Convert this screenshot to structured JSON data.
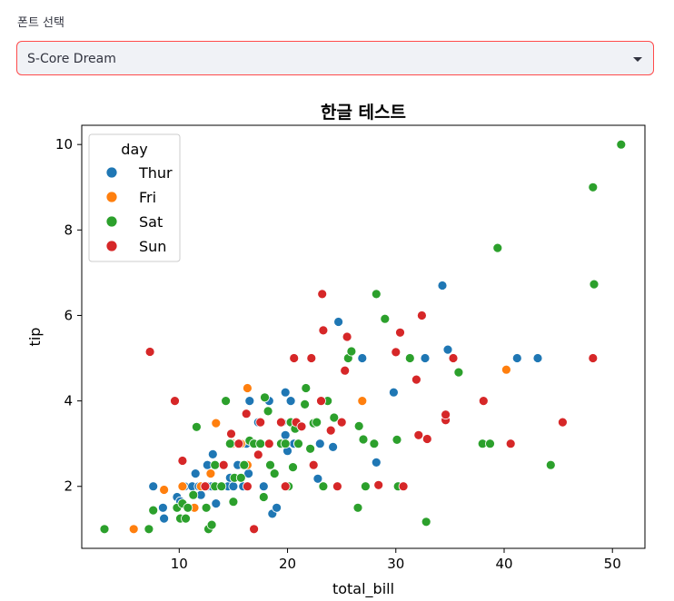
{
  "font_select": {
    "label": "폰트 선택",
    "value": "S-Core Dream",
    "border_color": "#ff4b4b",
    "background": "#f0f2f6",
    "icon": "chevron-down-icon"
  },
  "chart_data": {
    "type": "scatter",
    "title": "한글 테스트",
    "xlabel": "total_bill",
    "ylabel": "tip",
    "xlim": [
      1.0,
      53.0
    ],
    "ylim": [
      0.55,
      10.45
    ],
    "xticks": [
      10,
      20,
      30,
      40,
      50
    ],
    "yticks": [
      2,
      4,
      6,
      8,
      10
    ],
    "grid": false,
    "legend": {
      "title": "day",
      "position": "top-left"
    },
    "series": [
      {
        "name": "Thur",
        "color": "#1f77b4",
        "points": [
          [
            7.6,
            2.0
          ],
          [
            8.5,
            1.5
          ],
          [
            8.6,
            1.25
          ],
          [
            9.8,
            1.75
          ],
          [
            10.1,
            1.65
          ],
          [
            10.5,
            2.0
          ],
          [
            11.2,
            2.0
          ],
          [
            11.5,
            2.3
          ],
          [
            11.8,
            2.0
          ],
          [
            12.0,
            1.8
          ],
          [
            12.4,
            2.0
          ],
          [
            12.7,
            2.0
          ],
          [
            13.0,
            2.0
          ],
          [
            13.1,
            2.75
          ],
          [
            13.4,
            1.6
          ],
          [
            13.8,
            2.0
          ],
          [
            14.5,
            2.0
          ],
          [
            14.7,
            2.2
          ],
          [
            15.0,
            3.0
          ],
          [
            15.4,
            2.5
          ],
          [
            15.9,
            2.0
          ],
          [
            16.4,
            2.3
          ],
          [
            16.5,
            4.0
          ],
          [
            17.0,
            3.0
          ],
          [
            17.3,
            3.5
          ],
          [
            17.8,
            2.0
          ],
          [
            18.3,
            4.0
          ],
          [
            18.6,
            1.36
          ],
          [
            19.0,
            1.5
          ],
          [
            19.5,
            3.5
          ],
          [
            19.8,
            4.2
          ],
          [
            20.0,
            2.83
          ],
          [
            20.3,
            4.0
          ],
          [
            20.6,
            3.0
          ],
          [
            21.0,
            3.0
          ],
          [
            22.8,
            2.18
          ],
          [
            23.0,
            3.0
          ],
          [
            24.2,
            2.92
          ],
          [
            24.7,
            5.85
          ],
          [
            26.9,
            5.0
          ],
          [
            28.2,
            2.56
          ],
          [
            29.8,
            4.2
          ],
          [
            32.7,
            5.0
          ],
          [
            34.3,
            6.7
          ],
          [
            34.8,
            5.2
          ],
          [
            41.2,
            5.0
          ],
          [
            43.1,
            5.0
          ],
          [
            16.2,
            3.0
          ],
          [
            15.0,
            2.0
          ],
          [
            19.8,
            3.2
          ],
          [
            13.4,
            2.0
          ],
          [
            12.6,
            2.5
          ]
        ]
      },
      {
        "name": "Fri",
        "color": "#ff7f0e",
        "points": [
          [
            5.8,
            1.0
          ],
          [
            8.6,
            1.92
          ],
          [
            10.3,
            2.0
          ],
          [
            11.4,
            1.5
          ],
          [
            12.0,
            2.0
          ],
          [
            12.5,
            1.5
          ],
          [
            13.4,
            3.48
          ],
          [
            13.4,
            2.0
          ],
          [
            15.0,
            3.0
          ],
          [
            15.4,
            3.0
          ],
          [
            15.7,
            3.0
          ],
          [
            16.3,
            4.3
          ],
          [
            16.3,
            2.5
          ],
          [
            21.0,
            3.0
          ],
          [
            22.5,
            3.5
          ],
          [
            26.9,
            4.0
          ],
          [
            28.0,
            3.0
          ],
          [
            40.2,
            4.73
          ],
          [
            12.9,
            2.3
          ]
        ]
      },
      {
        "name": "Sat",
        "color": "#2ca02c",
        "points": [
          [
            3.1,
            1.0
          ],
          [
            7.2,
            1.0
          ],
          [
            7.6,
            1.44
          ],
          [
            9.8,
            1.5
          ],
          [
            10.1,
            1.25
          ],
          [
            10.3,
            1.6
          ],
          [
            10.6,
            1.25
          ],
          [
            10.8,
            1.5
          ],
          [
            11.3,
            1.8
          ],
          [
            11.6,
            3.39
          ],
          [
            12.5,
            1.5
          ],
          [
            12.7,
            1.0
          ],
          [
            13.0,
            1.1
          ],
          [
            13.3,
            2.5
          ],
          [
            13.3,
            2.0
          ],
          [
            13.9,
            2.0
          ],
          [
            14.3,
            4.0
          ],
          [
            14.7,
            3.0
          ],
          [
            15.0,
            1.64
          ],
          [
            15.1,
            2.2
          ],
          [
            15.7,
            2.2
          ],
          [
            16.0,
            2.5
          ],
          [
            16.5,
            3.07
          ],
          [
            16.9,
            3.0
          ],
          [
            17.5,
            3.0
          ],
          [
            17.8,
            1.75
          ],
          [
            17.9,
            4.08
          ],
          [
            18.2,
            3.76
          ],
          [
            18.4,
            2.5
          ],
          [
            18.8,
            2.3
          ],
          [
            19.4,
            3.0
          ],
          [
            19.8,
            3.0
          ],
          [
            20.1,
            2.0
          ],
          [
            20.3,
            3.5
          ],
          [
            20.5,
            2.45
          ],
          [
            20.7,
            3.35
          ],
          [
            21.0,
            3.0
          ],
          [
            21.6,
            3.92
          ],
          [
            21.7,
            4.3
          ],
          [
            22.1,
            2.88
          ],
          [
            22.4,
            3.48
          ],
          [
            23.3,
            2.0
          ],
          [
            23.7,
            4.0
          ],
          [
            24.3,
            3.61
          ],
          [
            24.6,
            2.0
          ],
          [
            25.3,
            4.71
          ],
          [
            25.6,
            5.0
          ],
          [
            25.9,
            5.16
          ],
          [
            26.5,
            1.5
          ],
          [
            26.6,
            3.41
          ],
          [
            27.0,
            3.1
          ],
          [
            27.2,
            2.0
          ],
          [
            28.0,
            3.0
          ],
          [
            28.2,
            6.5
          ],
          [
            29.0,
            5.92
          ],
          [
            30.1,
            3.09
          ],
          [
            30.2,
            2.0
          ],
          [
            31.3,
            5.0
          ],
          [
            32.8,
            1.17
          ],
          [
            35.8,
            4.67
          ],
          [
            38.0,
            3.0
          ],
          [
            38.7,
            3.0
          ],
          [
            39.4,
            7.58
          ],
          [
            44.3,
            2.5
          ],
          [
            48.2,
            9.0
          ],
          [
            48.3,
            6.73
          ],
          [
            50.8,
            10.0
          ],
          [
            22.7,
            3.5
          ]
        ]
      },
      {
        "name": "Sun",
        "color": "#d62728",
        "points": [
          [
            7.3,
            5.15
          ],
          [
            9.6,
            4.0
          ],
          [
            10.3,
            2.6
          ],
          [
            12.4,
            2.0
          ],
          [
            14.1,
            2.5
          ],
          [
            14.8,
            3.23
          ],
          [
            15.5,
            3.0
          ],
          [
            16.2,
            3.7
          ],
          [
            16.3,
            2.0
          ],
          [
            16.9,
            1.0
          ],
          [
            17.3,
            2.74
          ],
          [
            17.5,
            3.5
          ],
          [
            18.3,
            3.0
          ],
          [
            19.4,
            3.5
          ],
          [
            19.8,
            2.0
          ],
          [
            20.6,
            5.0
          ],
          [
            20.8,
            3.5
          ],
          [
            21.3,
            3.4
          ],
          [
            22.2,
            5.0
          ],
          [
            22.4,
            2.5
          ],
          [
            23.1,
            4.0
          ],
          [
            23.2,
            6.5
          ],
          [
            23.3,
            5.65
          ],
          [
            24.0,
            3.31
          ],
          [
            24.6,
            2.0
          ],
          [
            25.0,
            3.5
          ],
          [
            25.3,
            4.71
          ],
          [
            25.5,
            5.5
          ],
          [
            28.4,
            2.03
          ],
          [
            30.0,
            5.14
          ],
          [
            30.4,
            5.6
          ],
          [
            30.7,
            2.0
          ],
          [
            31.9,
            4.5
          ],
          [
            32.1,
            3.2
          ],
          [
            32.4,
            6.0
          ],
          [
            32.9,
            3.11
          ],
          [
            34.6,
            3.55
          ],
          [
            34.6,
            3.68
          ],
          [
            35.3,
            5.0
          ],
          [
            38.1,
            4.0
          ],
          [
            40.6,
            3.0
          ],
          [
            45.4,
            3.5
          ],
          [
            48.2,
            5.0
          ]
        ]
      }
    ]
  }
}
